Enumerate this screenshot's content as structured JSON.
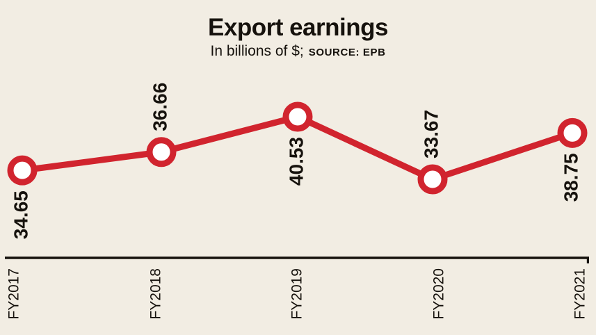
{
  "title": "Export earnings",
  "subtitle": {
    "unit": "In billions of $;",
    "source": "SOURCE: EPB"
  },
  "colors": {
    "background": "#f2ede3",
    "line": "#d1242e",
    "marker_fill": "#ffffff",
    "ink": "#16120d",
    "axis": "#16120d"
  },
  "chart_data": {
    "type": "line",
    "title": "Export earnings",
    "subtitle": "In billions of $; SOURCE: EPB",
    "unit": "billions of $",
    "source": "EPB",
    "categories": [
      "FY2017",
      "FY2018",
      "FY2019",
      "FY2020",
      "FY2021"
    ],
    "values": [
      34.65,
      36.66,
      40.53,
      33.67,
      38.75
    ],
    "value_labels": [
      "34.65",
      "36.66",
      "40.53",
      "33.67",
      "38.75"
    ],
    "value_label_position": [
      "below",
      "above",
      "below",
      "above",
      "below"
    ],
    "marker": "open-circle",
    "line_color": "#d1242e",
    "label_rotation_deg": 90,
    "ylim": [
      33,
      41
    ],
    "grid": false,
    "legend": false,
    "x_axis_line": true,
    "y_axis_line": false
  }
}
